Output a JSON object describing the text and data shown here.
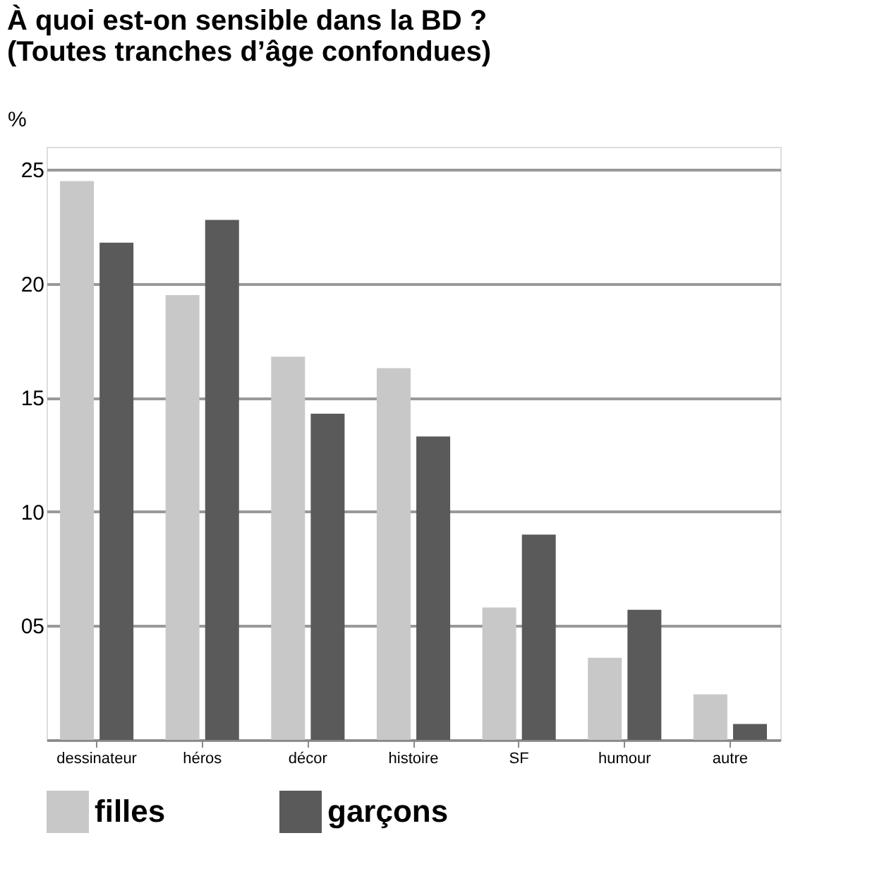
{
  "chart_data": {
    "type": "bar",
    "title": [
      "À quoi est-on sensible dans la BD ?",
      "(Toutes tranches d’âge confondues)"
    ],
    "ylabel": "%",
    "categories": [
      "dessinateur",
      "héros",
      "décor",
      "histoire",
      "SF",
      "humour",
      "autre"
    ],
    "series": [
      {
        "name": "filles",
        "color": "#c8c8c8",
        "values": [
          24.5,
          19.5,
          16.8,
          16.3,
          5.8,
          3.6,
          2.0
        ]
      },
      {
        "name": "garçons",
        "color": "#5a5a5a",
        "values": [
          21.8,
          22.8,
          14.3,
          13.3,
          9.0,
          5.7,
          0.7
        ]
      }
    ],
    "ylim": [
      0,
      26
    ],
    "yticks": [
      {
        "value": 0,
        "label": null
      },
      {
        "value": 5,
        "label": "05"
      },
      10,
      15,
      20,
      25
    ],
    "grid": "y",
    "legend": "bottom"
  }
}
